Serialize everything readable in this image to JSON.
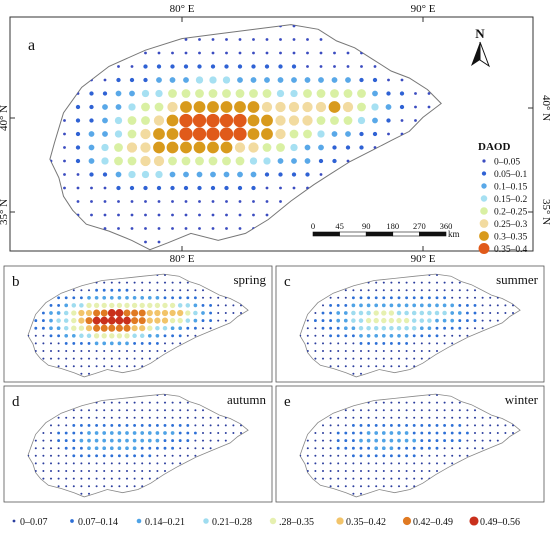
{
  "main_panel": {
    "letter": "a",
    "top_labels": [
      "80° E",
      "90° E"
    ],
    "left_labels": [
      "40° N",
      "35° N"
    ],
    "right_labels": [
      "40° N",
      "35° N"
    ],
    "north_label": "N",
    "legend": {
      "title": "DAOD",
      "items": [
        {
          "label": "0–0.05",
          "color": "#3b4cc0"
        },
        {
          "label": "0.05–0.1",
          "color": "#2f62d4"
        },
        {
          "label": "0.1–0.15",
          "color": "#59a8e8"
        },
        {
          "label": "0.15–0.2",
          "color": "#a6e0f2"
        },
        {
          "label": "0.2–0.25",
          "color": "#d9f0a3"
        },
        {
          "label": "0.25–0.3",
          "color": "#f2dba0"
        },
        {
          "label": "0.3–0.35",
          "color": "#d89a1c"
        },
        {
          "label": "0.35–0.4",
          "color": "#e05a1a"
        }
      ]
    },
    "scale_bar": {
      "ticks": [
        "0",
        "45",
        "90",
        "180",
        "270",
        "360"
      ],
      "unit": "km"
    }
  },
  "season_panels": [
    {
      "letter": "b",
      "season": "spring"
    },
    {
      "letter": "c",
      "season": "summer"
    },
    {
      "letter": "d",
      "season": "autumn"
    },
    {
      "letter": "e",
      "season": "winter"
    }
  ],
  "season_bottom_labels": [
    "80° E",
    "90° E"
  ],
  "bottom_legend": [
    {
      "label": "0–0.07",
      "color": "#2c3e9e"
    },
    {
      "label": "0.07–0.14",
      "color": "#2d6fd6"
    },
    {
      "label": "0.14–0.21",
      "color": "#4fa3e6"
    },
    {
      "label": "0.21–0.28",
      "color": "#9fdcef"
    },
    {
      "label": ".28–0.35",
      "color": "#e6f0b0"
    },
    {
      "label": "0.35–0.42",
      "color": "#f2c46a"
    },
    {
      "label": "0.42–0.49",
      "color": "#e07a22"
    },
    {
      "label": "0.49–0.56",
      "color": "#c9301c"
    }
  ]
}
